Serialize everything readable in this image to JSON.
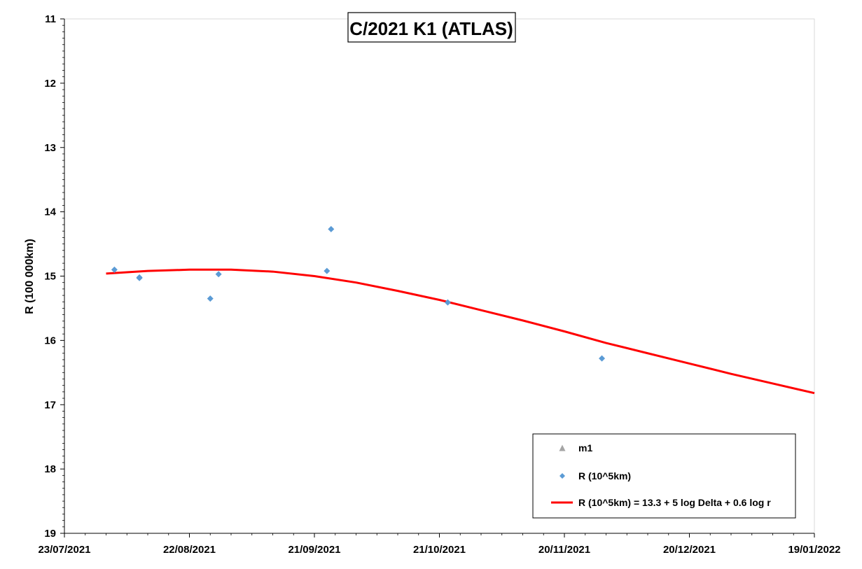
{
  "chart_data": {
    "type": "scatter",
    "title": "C/2021 K1 (ATLAS)",
    "ylabel": "R (100 000km)",
    "xlabel": "",
    "x_range": [
      "2021-07-23",
      "2022-01-19"
    ],
    "ylim": [
      11,
      19
    ],
    "y_inverted": true,
    "y_ticks": [
      11,
      12,
      13,
      14,
      15,
      16,
      17,
      18,
      19
    ],
    "x_ticks": [
      "2021-07-23",
      "2021-08-22",
      "2021-09-21",
      "2021-10-21",
      "2021-11-20",
      "2021-12-20",
      "2022-01-19"
    ],
    "x_tick_labels": [
      "23/07/2021",
      "22/08/2021",
      "21/09/2021",
      "21/10/2021",
      "20/11/2021",
      "20/12/2021",
      "19/01/2022"
    ],
    "grid": false,
    "legend_position": "bottom-right",
    "series": [
      {
        "name": "m1",
        "kind": "scatter",
        "marker": "triangle",
        "color": "#a5a5a5",
        "points": []
      },
      {
        "name": "R (10^5km)",
        "kind": "scatter",
        "marker": "diamond",
        "color": "#5b9bd5",
        "points": [
          {
            "x": "2021-08-29",
            "y": 14.97
          },
          {
            "x": "2021-08-04",
            "y": 14.9
          },
          {
            "x": "2021-08-10",
            "y": 15.03
          },
          {
            "x": "2021-08-10",
            "y": 15.02
          },
          {
            "x": "2021-08-27",
            "y": 15.35
          },
          {
            "x": "2021-09-24",
            "y": 14.92
          },
          {
            "x": "2021-09-25",
            "y": 14.27
          },
          {
            "x": "2021-10-23",
            "y": 15.41
          },
          {
            "x": "2021-11-29",
            "y": 16.28
          }
        ]
      },
      {
        "name": "R (10^5km) = 13.3 + 5 log Delta + 0.6 log r",
        "kind": "line",
        "color": "#ff0000",
        "points": [
          {
            "x": "2021-08-02",
            "y": 14.96
          },
          {
            "x": "2021-08-12",
            "y": 14.92
          },
          {
            "x": "2021-08-22",
            "y": 14.9
          },
          {
            "x": "2021-09-01",
            "y": 14.9
          },
          {
            "x": "2021-09-11",
            "y": 14.93
          },
          {
            "x": "2021-09-21",
            "y": 15.0
          },
          {
            "x": "2021-10-01",
            "y": 15.1
          },
          {
            "x": "2021-10-11",
            "y": 15.23
          },
          {
            "x": "2021-10-21",
            "y": 15.37
          },
          {
            "x": "2021-10-31",
            "y": 15.53
          },
          {
            "x": "2021-11-10",
            "y": 15.69
          },
          {
            "x": "2021-11-20",
            "y": 15.86
          },
          {
            "x": "2021-11-30",
            "y": 16.04
          },
          {
            "x": "2021-12-10",
            "y": 16.2
          },
          {
            "x": "2021-12-20",
            "y": 16.36
          },
          {
            "x": "2021-12-30",
            "y": 16.52
          },
          {
            "x": "2022-01-09",
            "y": 16.67
          },
          {
            "x": "2022-01-19",
            "y": 16.82
          }
        ]
      }
    ]
  }
}
